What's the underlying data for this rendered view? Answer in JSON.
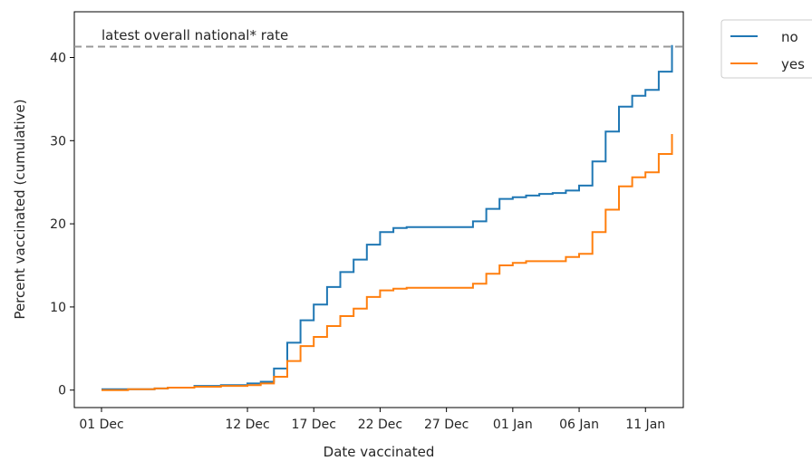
{
  "chart_data": {
    "type": "line",
    "step": true,
    "xlabel": "Date vaccinated",
    "ylabel": "Percent vaccinated (cumulative)",
    "x_ticks": [
      "01 Dec",
      "12 Dec",
      "17 Dec",
      "22 Dec",
      "27 Dec",
      "01 Jan",
      "06 Jan",
      "11 Jan"
    ],
    "y_ticks": [
      0,
      10,
      20,
      30,
      40
    ],
    "ylim": [
      -2.1,
      45.5
    ],
    "reference_line": {
      "label": "latest overall national* rate",
      "y": 41.3,
      "style": "dashed",
      "color": "#999999"
    },
    "legend": {
      "placement": "outside-right"
    },
    "series": [
      {
        "name": "no",
        "color": "#1f77b4",
        "points": [
          {
            "x": "2020-12-01",
            "y": 0.1
          },
          {
            "x": "2020-12-03",
            "y": 0.1
          },
          {
            "x": "2020-12-05",
            "y": 0.2
          },
          {
            "x": "2020-12-06",
            "y": 0.3
          },
          {
            "x": "2020-12-08",
            "y": 0.5
          },
          {
            "x": "2020-12-10",
            "y": 0.6
          },
          {
            "x": "2020-12-12",
            "y": 0.8
          },
          {
            "x": "2020-12-13",
            "y": 1.0
          },
          {
            "x": "2020-12-14",
            "y": 2.6
          },
          {
            "x": "2020-12-15",
            "y": 5.7
          },
          {
            "x": "2020-12-16",
            "y": 8.4
          },
          {
            "x": "2020-12-17",
            "y": 10.3
          },
          {
            "x": "2020-12-18",
            "y": 12.4
          },
          {
            "x": "2020-12-19",
            "y": 14.2
          },
          {
            "x": "2020-12-20",
            "y": 15.7
          },
          {
            "x": "2020-12-21",
            "y": 17.5
          },
          {
            "x": "2020-12-22",
            "y": 19.0
          },
          {
            "x": "2020-12-23",
            "y": 19.5
          },
          {
            "x": "2020-12-24",
            "y": 19.6
          },
          {
            "x": "2020-12-29",
            "y": 20.3
          },
          {
            "x": "2020-12-30",
            "y": 21.8
          },
          {
            "x": "2020-12-31",
            "y": 23.0
          },
          {
            "x": "2021-01-01",
            "y": 23.2
          },
          {
            "x": "2021-01-02",
            "y": 23.4
          },
          {
            "x": "2021-01-03",
            "y": 23.6
          },
          {
            "x": "2021-01-04",
            "y": 23.7
          },
          {
            "x": "2021-01-05",
            "y": 24.0
          },
          {
            "x": "2021-01-06",
            "y": 24.6
          },
          {
            "x": "2021-01-07",
            "y": 27.5
          },
          {
            "x": "2021-01-08",
            "y": 31.1
          },
          {
            "x": "2021-01-09",
            "y": 34.1
          },
          {
            "x": "2021-01-10",
            "y": 35.4
          },
          {
            "x": "2021-01-11",
            "y": 36.1
          },
          {
            "x": "2021-01-12",
            "y": 38.3
          },
          {
            "x": "2021-01-13",
            "y": 41.5
          }
        ]
      },
      {
        "name": "yes",
        "color": "#ff7f0e",
        "points": [
          {
            "x": "2020-12-01",
            "y": 0.0
          },
          {
            "x": "2020-12-03",
            "y": 0.1
          },
          {
            "x": "2020-12-05",
            "y": 0.2
          },
          {
            "x": "2020-12-06",
            "y": 0.3
          },
          {
            "x": "2020-12-08",
            "y": 0.4
          },
          {
            "x": "2020-12-10",
            "y": 0.5
          },
          {
            "x": "2020-12-12",
            "y": 0.6
          },
          {
            "x": "2020-12-13",
            "y": 0.8
          },
          {
            "x": "2020-12-14",
            "y": 1.6
          },
          {
            "x": "2020-12-15",
            "y": 3.5
          },
          {
            "x": "2020-12-16",
            "y": 5.3
          },
          {
            "x": "2020-12-17",
            "y": 6.4
          },
          {
            "x": "2020-12-18",
            "y": 7.7
          },
          {
            "x": "2020-12-19",
            "y": 8.9
          },
          {
            "x": "2020-12-20",
            "y": 9.8
          },
          {
            "x": "2020-12-21",
            "y": 11.2
          },
          {
            "x": "2020-12-22",
            "y": 12.0
          },
          {
            "x": "2020-12-23",
            "y": 12.2
          },
          {
            "x": "2020-12-24",
            "y": 12.3
          },
          {
            "x": "2020-12-29",
            "y": 12.8
          },
          {
            "x": "2020-12-30",
            "y": 14.0
          },
          {
            "x": "2020-12-31",
            "y": 15.0
          },
          {
            "x": "2021-01-01",
            "y": 15.3
          },
          {
            "x": "2021-01-02",
            "y": 15.5
          },
          {
            "x": "2021-01-03",
            "y": 15.5
          },
          {
            "x": "2021-01-04",
            "y": 15.5
          },
          {
            "x": "2021-01-05",
            "y": 16.0
          },
          {
            "x": "2021-01-06",
            "y": 16.4
          },
          {
            "x": "2021-01-07",
            "y": 19.0
          },
          {
            "x": "2021-01-08",
            "y": 21.7
          },
          {
            "x": "2021-01-09",
            "y": 24.5
          },
          {
            "x": "2021-01-10",
            "y": 25.6
          },
          {
            "x": "2021-01-11",
            "y": 26.2
          },
          {
            "x": "2021-01-12",
            "y": 28.4
          },
          {
            "x": "2021-01-13",
            "y": 30.8
          }
        ]
      }
    ]
  }
}
